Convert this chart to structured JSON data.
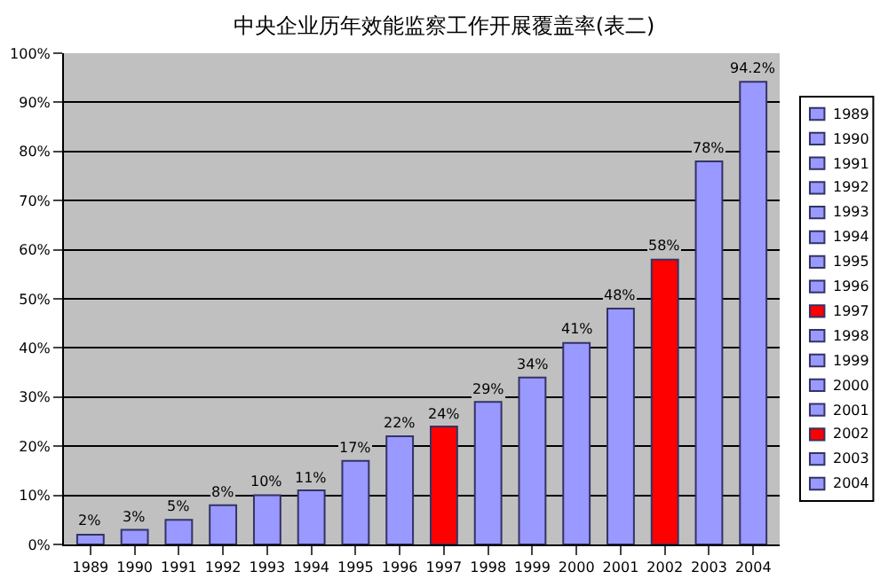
{
  "chart_data": {
    "type": "bar",
    "title": "中央企业历年效能监察工作开展覆盖率(表二)",
    "categories": [
      "1989",
      "1990",
      "1991",
      "1992",
      "1993",
      "1994",
      "1995",
      "1996",
      "1997",
      "1998",
      "1999",
      "2000",
      "2001",
      "2002",
      "2003",
      "2004"
    ],
    "series": [
      {
        "name": "1989",
        "color": "#9999ff",
        "values": [
          2,
          null,
          null,
          null,
          null,
          null,
          null,
          null,
          null,
          null,
          null,
          null,
          null,
          null,
          null,
          null
        ],
        "value_labels": [
          "2%",
          null,
          null,
          null,
          null,
          null,
          null,
          null,
          null,
          null,
          null,
          null,
          null,
          null,
          null,
          null
        ]
      },
      {
        "name": "1990",
        "color": "#9999ff",
        "values": [
          null,
          3,
          null,
          null,
          null,
          null,
          null,
          null,
          null,
          null,
          null,
          null,
          null,
          null,
          null,
          null
        ],
        "value_labels": [
          null,
          "3%",
          null,
          null,
          null,
          null,
          null,
          null,
          null,
          null,
          null,
          null,
          null,
          null,
          null,
          null
        ]
      },
      {
        "name": "1991",
        "color": "#9999ff",
        "values": [
          null,
          null,
          5,
          null,
          null,
          null,
          null,
          null,
          null,
          null,
          null,
          null,
          null,
          null,
          null,
          null
        ],
        "value_labels": [
          null,
          null,
          "5%",
          null,
          null,
          null,
          null,
          null,
          null,
          null,
          null,
          null,
          null,
          null,
          null,
          null
        ]
      },
      {
        "name": "1992",
        "color": "#9999ff",
        "values": [
          null,
          null,
          null,
          8,
          null,
          null,
          null,
          null,
          null,
          null,
          null,
          null,
          null,
          null,
          null,
          null
        ],
        "value_labels": [
          null,
          null,
          null,
          "8%",
          null,
          null,
          null,
          null,
          null,
          null,
          null,
          null,
          null,
          null,
          null,
          null
        ]
      },
      {
        "name": "1993",
        "color": "#9999ff",
        "values": [
          null,
          null,
          null,
          null,
          10,
          null,
          null,
          null,
          null,
          null,
          null,
          null,
          null,
          null,
          null,
          null
        ],
        "value_labels": [
          null,
          null,
          null,
          null,
          "10%",
          null,
          null,
          null,
          null,
          null,
          null,
          null,
          null,
          null,
          null,
          null
        ]
      },
      {
        "name": "1994",
        "color": "#9999ff",
        "values": [
          null,
          null,
          null,
          null,
          null,
          11,
          null,
          null,
          null,
          null,
          null,
          null,
          null,
          null,
          null,
          null
        ],
        "value_labels": [
          null,
          null,
          null,
          null,
          null,
          "11%",
          null,
          null,
          null,
          null,
          null,
          null,
          null,
          null,
          null,
          null
        ]
      },
      {
        "name": "1995",
        "color": "#9999ff",
        "values": [
          null,
          null,
          null,
          null,
          null,
          null,
          17,
          null,
          null,
          null,
          null,
          null,
          null,
          null,
          null,
          null
        ],
        "value_labels": [
          null,
          null,
          null,
          null,
          null,
          null,
          "17%",
          null,
          null,
          null,
          null,
          null,
          null,
          null,
          null,
          null
        ]
      },
      {
        "name": "1996",
        "color": "#9999ff",
        "values": [
          null,
          null,
          null,
          null,
          null,
          null,
          null,
          22,
          null,
          null,
          null,
          null,
          null,
          null,
          null,
          null
        ],
        "value_labels": [
          null,
          null,
          null,
          null,
          null,
          null,
          null,
          "22%",
          null,
          null,
          null,
          null,
          null,
          null,
          null,
          null
        ]
      },
      {
        "name": "1997",
        "color": "#ff0000",
        "values": [
          null,
          null,
          null,
          null,
          null,
          null,
          null,
          null,
          24,
          null,
          null,
          null,
          null,
          null,
          null,
          null
        ],
        "value_labels": [
          null,
          null,
          null,
          null,
          null,
          null,
          null,
          null,
          "24%",
          null,
          null,
          null,
          null,
          null,
          null,
          null
        ]
      },
      {
        "name": "1998",
        "color": "#9999ff",
        "values": [
          null,
          null,
          null,
          null,
          null,
          null,
          null,
          null,
          null,
          29,
          null,
          null,
          null,
          null,
          null,
          null
        ],
        "value_labels": [
          null,
          null,
          null,
          null,
          null,
          null,
          null,
          null,
          null,
          "29%",
          null,
          null,
          null,
          null,
          null,
          null
        ]
      },
      {
        "name": "1999",
        "color": "#9999ff",
        "values": [
          null,
          null,
          null,
          null,
          null,
          null,
          null,
          null,
          null,
          null,
          34,
          null,
          null,
          null,
          null,
          null
        ],
        "value_labels": [
          null,
          null,
          null,
          null,
          null,
          null,
          null,
          null,
          null,
          null,
          "34%",
          null,
          null,
          null,
          null,
          null
        ]
      },
      {
        "name": "2000",
        "color": "#9999ff",
        "values": [
          null,
          null,
          null,
          null,
          null,
          null,
          null,
          null,
          null,
          null,
          null,
          41,
          null,
          null,
          null,
          null
        ],
        "value_labels": [
          null,
          null,
          null,
          null,
          null,
          null,
          null,
          null,
          null,
          null,
          null,
          "41%",
          null,
          null,
          null,
          null
        ]
      },
      {
        "name": "2001",
        "color": "#9999ff",
        "values": [
          null,
          null,
          null,
          null,
          null,
          null,
          null,
          null,
          null,
          null,
          null,
          null,
          48,
          null,
          null,
          null
        ],
        "value_labels": [
          null,
          null,
          null,
          null,
          null,
          null,
          null,
          null,
          null,
          null,
          null,
          null,
          "48%",
          null,
          null,
          null
        ]
      },
      {
        "name": "2002",
        "color": "#ff0000",
        "values": [
          null,
          null,
          null,
          null,
          null,
          null,
          null,
          null,
          null,
          null,
          null,
          null,
          null,
          58,
          null,
          null
        ],
        "value_labels": [
          null,
          null,
          null,
          null,
          null,
          null,
          null,
          null,
          null,
          null,
          null,
          null,
          null,
          "58%",
          null,
          null
        ]
      },
      {
        "name": "2003",
        "color": "#9999ff",
        "values": [
          null,
          null,
          null,
          null,
          null,
          null,
          null,
          null,
          null,
          null,
          null,
          null,
          null,
          null,
          78,
          null
        ],
        "value_labels": [
          null,
          null,
          null,
          null,
          null,
          null,
          null,
          null,
          null,
          null,
          null,
          null,
          null,
          null,
          "78%",
          null
        ]
      },
      {
        "name": "2004",
        "color": "#9999ff",
        "values": [
          null,
          null,
          null,
          null,
          null,
          null,
          null,
          null,
          null,
          null,
          null,
          null,
          null,
          null,
          null,
          94.2
        ],
        "value_labels": [
          null,
          null,
          null,
          null,
          null,
          null,
          null,
          null,
          null,
          null,
          null,
          null,
          null,
          null,
          null,
          "94.2%"
        ]
      }
    ],
    "ylim": [
      0,
      100
    ],
    "yticks": [
      {
        "value": 0,
        "label": "0%"
      },
      {
        "value": 10,
        "label": "10%"
      },
      {
        "value": 20,
        "label": "20%"
      },
      {
        "value": 30,
        "label": "30%"
      },
      {
        "value": 40,
        "label": "40%"
      },
      {
        "value": 50,
        "label": "50%"
      },
      {
        "value": 60,
        "label": "60%"
      },
      {
        "value": 70,
        "label": "70%"
      },
      {
        "value": 80,
        "label": "80%"
      },
      {
        "value": 90,
        "label": "90%"
      },
      {
        "value": 100,
        "label": "100%"
      }
    ],
    "grid": "y",
    "legend": "right"
  }
}
